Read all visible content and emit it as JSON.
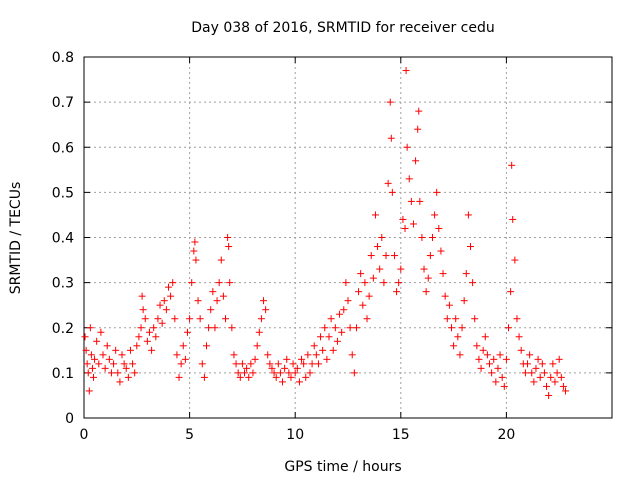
{
  "chart_data": {
    "type": "scatter",
    "title": "Day 038 of 2016, SRMTID for receiver cedu",
    "xlabel": "GPS time / hours",
    "ylabel": "SRMTID / TECUs",
    "xlim": [
      0,
      25
    ],
    "ylim": [
      0,
      0.8
    ],
    "xticks": [
      0,
      5,
      10,
      15,
      20
    ],
    "yticks": [
      0,
      0.1,
      0.2,
      0.3,
      0.4,
      0.5,
      0.6,
      0.7,
      0.8
    ],
    "xtick_labels": [
      "0",
      "5",
      "10",
      "15",
      "20"
    ],
    "ytick_labels": [
      "0",
      "0.1",
      "0.2",
      "0.3",
      "0.4",
      "0.5",
      "0.6",
      "0.7",
      "0.8"
    ],
    "grid": true,
    "marker": "+",
    "marker_color": "#ff0000",
    "series": [
      {
        "name": "SRMTID",
        "points": [
          [
            0.05,
            0.18
          ],
          [
            0.1,
            0.15
          ],
          [
            0.15,
            0.12
          ],
          [
            0.2,
            0.1
          ],
          [
            0.25,
            0.06
          ],
          [
            0.3,
            0.2
          ],
          [
            0.35,
            0.14
          ],
          [
            0.4,
            0.11
          ],
          [
            0.45,
            0.09
          ],
          [
            0.5,
            0.13
          ],
          [
            0.6,
            0.17
          ],
          [
            0.7,
            0.12
          ],
          [
            0.8,
            0.19
          ],
          [
            0.9,
            0.14
          ],
          [
            1.0,
            0.11
          ],
          [
            1.1,
            0.16
          ],
          [
            1.2,
            0.13
          ],
          [
            1.3,
            0.1
          ],
          [
            1.4,
            0.12
          ],
          [
            1.5,
            0.15
          ],
          [
            1.6,
            0.1
          ],
          [
            1.7,
            0.08
          ],
          [
            1.8,
            0.14
          ],
          [
            1.9,
            0.12
          ],
          [
            2.0,
            0.11
          ],
          [
            2.1,
            0.09
          ],
          [
            2.2,
            0.15
          ],
          [
            2.3,
            0.12
          ],
          [
            2.4,
            0.1
          ],
          [
            2.5,
            0.16
          ],
          [
            2.6,
            0.18
          ],
          [
            2.7,
            0.2
          ],
          [
            2.75,
            0.27
          ],
          [
            2.8,
            0.24
          ],
          [
            2.9,
            0.22
          ],
          [
            3.0,
            0.17
          ],
          [
            3.1,
            0.19
          ],
          [
            3.2,
            0.15
          ],
          [
            3.3,
            0.2
          ],
          [
            3.4,
            0.18
          ],
          [
            3.5,
            0.22
          ],
          [
            3.6,
            0.25
          ],
          [
            3.7,
            0.21
          ],
          [
            3.8,
            0.26
          ],
          [
            3.9,
            0.24
          ],
          [
            4.0,
            0.29
          ],
          [
            4.1,
            0.27
          ],
          [
            4.2,
            0.3
          ],
          [
            4.3,
            0.22
          ],
          [
            4.4,
            0.14
          ],
          [
            4.5,
            0.09
          ],
          [
            4.6,
            0.12
          ],
          [
            4.7,
            0.16
          ],
          [
            4.8,
            0.13
          ],
          [
            4.9,
            0.19
          ],
          [
            5.0,
            0.22
          ],
          [
            5.1,
            0.3
          ],
          [
            5.2,
            0.37
          ],
          [
            5.25,
            0.39
          ],
          [
            5.3,
            0.35
          ],
          [
            5.4,
            0.26
          ],
          [
            5.5,
            0.22
          ],
          [
            5.6,
            0.12
          ],
          [
            5.7,
            0.09
          ],
          [
            5.8,
            0.16
          ],
          [
            5.9,
            0.2
          ],
          [
            6.0,
            0.24
          ],
          [
            6.1,
            0.28
          ],
          [
            6.2,
            0.2
          ],
          [
            6.3,
            0.26
          ],
          [
            6.4,
            0.3
          ],
          [
            6.5,
            0.35
          ],
          [
            6.6,
            0.27
          ],
          [
            6.7,
            0.22
          ],
          [
            6.8,
            0.4
          ],
          [
            6.85,
            0.38
          ],
          [
            6.9,
            0.3
          ],
          [
            7.0,
            0.2
          ],
          [
            7.1,
            0.14
          ],
          [
            7.2,
            0.12
          ],
          [
            7.3,
            0.1
          ],
          [
            7.4,
            0.09
          ],
          [
            7.5,
            0.12
          ],
          [
            7.6,
            0.1
          ],
          [
            7.7,
            0.11
          ],
          [
            7.8,
            0.09
          ],
          [
            7.9,
            0.12
          ],
          [
            8.0,
            0.1
          ],
          [
            8.1,
            0.13
          ],
          [
            8.2,
            0.16
          ],
          [
            8.3,
            0.19
          ],
          [
            8.4,
            0.22
          ],
          [
            8.5,
            0.26
          ],
          [
            8.6,
            0.24
          ],
          [
            8.7,
            0.14
          ],
          [
            8.8,
            0.12
          ],
          [
            8.9,
            0.11
          ],
          [
            9.0,
            0.1
          ],
          [
            9.1,
            0.09
          ],
          [
            9.2,
            0.12
          ],
          [
            9.3,
            0.1
          ],
          [
            9.4,
            0.08
          ],
          [
            9.5,
            0.11
          ],
          [
            9.6,
            0.13
          ],
          [
            9.7,
            0.1
          ],
          [
            9.8,
            0.09
          ],
          [
            9.9,
            0.12
          ],
          [
            10.0,
            0.1
          ],
          [
            10.1,
            0.11
          ],
          [
            10.2,
            0.08
          ],
          [
            10.3,
            0.13
          ],
          [
            10.4,
            0.12
          ],
          [
            10.5,
            0.09
          ],
          [
            10.6,
            0.14
          ],
          [
            10.7,
            0.1
          ],
          [
            10.8,
            0.12
          ],
          [
            10.9,
            0.16
          ],
          [
            11.0,
            0.14
          ],
          [
            11.1,
            0.12
          ],
          [
            11.2,
            0.18
          ],
          [
            11.3,
            0.15
          ],
          [
            11.4,
            0.2
          ],
          [
            11.5,
            0.13
          ],
          [
            11.6,
            0.18
          ],
          [
            11.7,
            0.22
          ],
          [
            11.8,
            0.15
          ],
          [
            11.9,
            0.2
          ],
          [
            12.0,
            0.17
          ],
          [
            12.1,
            0.23
          ],
          [
            12.2,
            0.19
          ],
          [
            12.3,
            0.24
          ],
          [
            12.4,
            0.3
          ],
          [
            12.5,
            0.26
          ],
          [
            12.6,
            0.2
          ],
          [
            12.7,
            0.14
          ],
          [
            12.8,
            0.1
          ],
          [
            12.9,
            0.2
          ],
          [
            13.0,
            0.28
          ],
          [
            13.1,
            0.32
          ],
          [
            13.2,
            0.25
          ],
          [
            13.3,
            0.3
          ],
          [
            13.4,
            0.22
          ],
          [
            13.5,
            0.27
          ],
          [
            13.6,
            0.36
          ],
          [
            13.7,
            0.31
          ],
          [
            13.8,
            0.45
          ],
          [
            13.9,
            0.38
          ],
          [
            14.0,
            0.33
          ],
          [
            14.1,
            0.4
          ],
          [
            14.2,
            0.3
          ],
          [
            14.3,
            0.36
          ],
          [
            14.4,
            0.52
          ],
          [
            14.5,
            0.7
          ],
          [
            14.55,
            0.62
          ],
          [
            14.6,
            0.5
          ],
          [
            14.7,
            0.36
          ],
          [
            14.8,
            0.28
          ],
          [
            14.9,
            0.3
          ],
          [
            15.0,
            0.33
          ],
          [
            15.1,
            0.44
          ],
          [
            15.2,
            0.42
          ],
          [
            15.25,
            0.77
          ],
          [
            15.3,
            0.6
          ],
          [
            15.4,
            0.53
          ],
          [
            15.5,
            0.48
          ],
          [
            15.6,
            0.43
          ],
          [
            15.7,
            0.57
          ],
          [
            15.8,
            0.64
          ],
          [
            15.85,
            0.68
          ],
          [
            15.9,
            0.48
          ],
          [
            16.0,
            0.4
          ],
          [
            16.1,
            0.33
          ],
          [
            16.2,
            0.28
          ],
          [
            16.3,
            0.31
          ],
          [
            16.4,
            0.36
          ],
          [
            16.5,
            0.4
          ],
          [
            16.6,
            0.45
          ],
          [
            16.7,
            0.5
          ],
          [
            16.8,
            0.42
          ],
          [
            16.9,
            0.37
          ],
          [
            17.0,
            0.32
          ],
          [
            17.1,
            0.27
          ],
          [
            17.2,
            0.22
          ],
          [
            17.3,
            0.25
          ],
          [
            17.4,
            0.2
          ],
          [
            17.5,
            0.16
          ],
          [
            17.6,
            0.22
          ],
          [
            17.7,
            0.18
          ],
          [
            17.8,
            0.14
          ],
          [
            17.9,
            0.2
          ],
          [
            18.0,
            0.26
          ],
          [
            18.1,
            0.32
          ],
          [
            18.2,
            0.45
          ],
          [
            18.3,
            0.38
          ],
          [
            18.4,
            0.3
          ],
          [
            18.5,
            0.22
          ],
          [
            18.6,
            0.16
          ],
          [
            18.7,
            0.13
          ],
          [
            18.8,
            0.11
          ],
          [
            18.9,
            0.15
          ],
          [
            19.0,
            0.18
          ],
          [
            19.1,
            0.14
          ],
          [
            19.2,
            0.12
          ],
          [
            19.3,
            0.1
          ],
          [
            19.4,
            0.13
          ],
          [
            19.5,
            0.08
          ],
          [
            19.6,
            0.11
          ],
          [
            19.7,
            0.14
          ],
          [
            19.8,
            0.09
          ],
          [
            19.9,
            0.07
          ],
          [
            20.0,
            0.13
          ],
          [
            20.1,
            0.2
          ],
          [
            20.2,
            0.28
          ],
          [
            20.25,
            0.56
          ],
          [
            20.3,
            0.44
          ],
          [
            20.4,
            0.35
          ],
          [
            20.5,
            0.22
          ],
          [
            20.6,
            0.18
          ],
          [
            20.7,
            0.15
          ],
          [
            20.8,
            0.12
          ],
          [
            20.9,
            0.1
          ],
          [
            21.0,
            0.12
          ],
          [
            21.1,
            0.14
          ],
          [
            21.2,
            0.1
          ],
          [
            21.3,
            0.08
          ],
          [
            21.4,
            0.11
          ],
          [
            21.5,
            0.13
          ],
          [
            21.6,
            0.09
          ],
          [
            21.7,
            0.12
          ],
          [
            21.8,
            0.1
          ],
          [
            21.9,
            0.07
          ],
          [
            22.0,
            0.05
          ],
          [
            22.1,
            0.09
          ],
          [
            22.2,
            0.12
          ],
          [
            22.3,
            0.08
          ],
          [
            22.4,
            0.1
          ],
          [
            22.5,
            0.13
          ],
          [
            22.6,
            0.09
          ],
          [
            22.7,
            0.07
          ],
          [
            22.8,
            0.06
          ]
        ]
      }
    ]
  }
}
